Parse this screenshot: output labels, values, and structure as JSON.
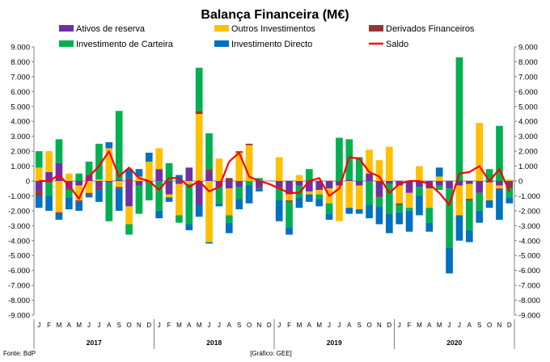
{
  "chart_data": {
    "type": "bar",
    "title": "Balança Financeira (M€)",
    "source": "Fonte: BdP",
    "credit": "[Gráfico: GEE]",
    "ylim": [
      -9000,
      9000
    ],
    "yticks": [
      9000,
      8000,
      7000,
      6000,
      5000,
      4000,
      3000,
      2000,
      1000,
      0,
      -1000,
      -2000,
      -3000,
      -4000,
      -5000,
      -6000,
      -7000,
      -8000,
      -9000
    ],
    "ytick_labels": [
      "9.000",
      "8.000",
      "7.000",
      "6.000",
      "5.000",
      "4.000",
      "3.000",
      "2.000",
      "1.000",
      "0",
      "-1.000",
      "-2.000",
      "-3.000",
      "-4.000",
      "-5.000",
      "-6.000",
      "-7.000",
      "-8.000",
      "-9.000"
    ],
    "month_labels": [
      "J",
      "F",
      "M",
      "A",
      "M",
      "J",
      "J",
      "A",
      "S",
      "O",
      "N",
      "D",
      "J",
      "F",
      "M",
      "A",
      "M",
      "J",
      "J",
      "A",
      "S",
      "O",
      "N",
      "D",
      "J",
      "F",
      "M",
      "A",
      "M",
      "J",
      "J",
      "A",
      "S",
      "O",
      "N",
      "D",
      "J",
      "F",
      "M",
      "A",
      "M",
      "J",
      "J",
      "A",
      "S",
      "O",
      "N",
      "D"
    ],
    "years": [
      "2017",
      "2018",
      "2019",
      "2020"
    ],
    "legend_position": "top",
    "colors": {
      "reserva": "#7030a0",
      "outros": "#ffc000",
      "derivados": "#943634",
      "carteira": "#00b050",
      "directo": "#0070c0",
      "saldo": "#ff0000"
    },
    "series": [
      {
        "name": "Ativos de reserva",
        "key": "reserva",
        "values": [
          -700,
          600,
          1200,
          -500,
          -300,
          400,
          -400,
          -100,
          100,
          -1700,
          -300,
          -100,
          800,
          -900,
          -200,
          900,
          -1600,
          600,
          -400,
          -500,
          -400,
          0,
          -400,
          0,
          -400,
          -900,
          -300,
          -700,
          -600,
          -500,
          -300,
          100,
          -300,
          500,
          -1000,
          -200,
          -300,
          -800,
          -400,
          -500,
          -300,
          -500,
          -300,
          -200,
          -800,
          -100,
          -300,
          -300
        ]
      },
      {
        "name": "Outros Investimentos",
        "key": "outros",
        "values": [
          900,
          1400,
          -2100,
          500,
          -1000,
          -800,
          100,
          2200,
          -400,
          -1200,
          300,
          1300,
          1400,
          -200,
          -2100,
          -200,
          4500,
          -4100,
          1500,
          -1800,
          1900,
          2400,
          0,
          0,
          1600,
          -400,
          400,
          -200,
          -300,
          -1000,
          -2400,
          -1800,
          -1600,
          1600,
          1400,
          2300,
          -1200,
          -1000,
          1000,
          -1300,
          300,
          0,
          -2000,
          -1000,
          3900,
          -1200,
          -200,
          100
        ]
      },
      {
        "name": "Derivados Financeiros",
        "key": "derivados",
        "values": [
          -300,
          -100,
          -100,
          -100,
          -100,
          -100,
          -200,
          0,
          -100,
          200,
          0,
          0,
          0,
          0,
          0,
          0,
          200,
          200,
          0,
          200,
          100,
          100,
          -100,
          0,
          -100,
          -100,
          0,
          0,
          0,
          0,
          0,
          0,
          0,
          0,
          -100,
          0,
          -100,
          0,
          0,
          0,
          0,
          0,
          0,
          -100,
          0,
          0,
          -100,
          -200
        ]
      },
      {
        "name": "Investimento de Carteira",
        "key": "carteira",
        "values": [
          1100,
          -900,
          1600,
          -500,
          500,
          900,
          2400,
          -2600,
          4600,
          -700,
          -1900,
          -1200,
          -2000,
          1200,
          -500,
          -2700,
          2900,
          2400,
          -1100,
          -500,
          -800,
          -300,
          200,
          0,
          -800,
          -1700,
          -800,
          800,
          -300,
          -700,
          2900,
          2700,
          1600,
          -1600,
          -600,
          -2000,
          -500,
          -200,
          -600,
          -1000,
          -300,
          -4000,
          8300,
          -2000,
          -1200,
          800,
          3700,
          -600
        ]
      },
      {
        "name": "Investimento Directo",
        "key": "directo",
        "values": [
          -800,
          -1000,
          -400,
          -800,
          -600,
          -200,
          -800,
          400,
          -1500,
          600,
          500,
          600,
          -500,
          -300,
          400,
          -400,
          -800,
          -100,
          -200,
          -700,
          -700,
          -1200,
          -200,
          0,
          -1400,
          -500,
          -700,
          -500,
          -500,
          -400,
          0,
          -400,
          -300,
          -900,
          -1200,
          -1300,
          -800,
          -1400,
          -1300,
          -600,
          600,
          -1700,
          -1700,
          -800,
          -800,
          -500,
          -2000,
          -400
        ]
      }
    ],
    "line": {
      "name": "Saldo",
      "key": "saldo",
      "values": [
        0,
        0,
        400,
        -300,
        -1200,
        300,
        1000,
        2000,
        300,
        900,
        200,
        0,
        -600,
        200,
        200,
        -400,
        0,
        -700,
        -400,
        1300,
        1900,
        300,
        0,
        -200,
        -500,
        -800,
        -800,
        0,
        200,
        -1000,
        -500,
        1600,
        1500,
        600,
        300,
        -800,
        -200,
        0,
        0,
        -200,
        -800,
        -1600,
        500,
        600,
        1000,
        0,
        800,
        -700
      ]
    }
  }
}
